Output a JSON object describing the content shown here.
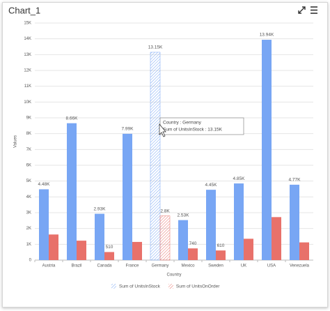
{
  "chart_data": {
    "type": "bar",
    "title": "Chart_1",
    "x_label": "Country",
    "y_label": "Values",
    "categories": [
      "Austria",
      "Brazil",
      "Canada",
      "France",
      "Germany",
      "Mexico",
      "Sweden",
      "UK",
      "USA",
      "Venezuela"
    ],
    "series": [
      {
        "name": "Sum of UnitsInStock",
        "color": "#78a6f4",
        "values": [
          4480,
          8660,
          2930,
          7990,
          13150,
          2530,
          4450,
          4850,
          13940,
          4770
        ],
        "value_labels": [
          "4.48K",
          "8.66K",
          "2.93K",
          "7.99K",
          "13.15K",
          "2.53K",
          "4.45K",
          "4.85K",
          "13.94K",
          "4.77K"
        ]
      },
      {
        "name": "Sum of UnitsOnOrder",
        "color": "#e8716a",
        "values": [
          1620,
          1230,
          510,
          1150,
          2800,
          740,
          610,
          1350,
          2720,
          1120
        ],
        "value_labels": [
          null,
          null,
          "510",
          null,
          "2.8K",
          "740",
          "610",
          null,
          null,
          null
        ]
      }
    ],
    "ylim": [
      0,
      15000
    ],
    "yticks": [
      0,
      {
        "value": 1000,
        "label": "1K"
      },
      {
        "value": 2000,
        "label": "2K"
      },
      {
        "value": 3000,
        "label": "3K"
      },
      {
        "value": 4000,
        "label": "4K"
      },
      {
        "value": 5000,
        "label": "5K"
      },
      {
        "value": 6000,
        "label": "6K"
      },
      {
        "value": 7000,
        "label": "7K"
      },
      {
        "value": 8000,
        "label": "8K"
      },
      {
        "value": 9000,
        "label": "9K"
      },
      {
        "value": 10000,
        "label": "10K"
      },
      {
        "value": 11000,
        "label": "11K"
      },
      {
        "value": 12000,
        "label": "12K"
      },
      {
        "value": 13000,
        "label": "13K"
      },
      {
        "value": 14000,
        "label": "14K"
      },
      {
        "value": 15000,
        "label": "15K"
      }
    ],
    "grid": true,
    "highlighted": 4,
    "tooltip": [
      "Country : Germany",
      "Sum of UnitsInStock : 13.15K"
    ]
  }
}
